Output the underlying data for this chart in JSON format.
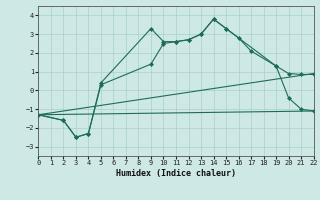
{
  "xlabel": "Humidex (Indice chaleur)",
  "xlim": [
    0,
    22
  ],
  "ylim": [
    -3.5,
    4.5
  ],
  "xticks": [
    0,
    1,
    2,
    3,
    4,
    5,
    6,
    7,
    8,
    9,
    10,
    11,
    12,
    13,
    14,
    15,
    16,
    17,
    18,
    19,
    20,
    21,
    22
  ],
  "yticks": [
    -3,
    -2,
    -1,
    0,
    1,
    2,
    3,
    4
  ],
  "bg_color": "#cde8e5",
  "line_color": "#1e6b5e",
  "line1_x": [
    0,
    2,
    3,
    4,
    5,
    9,
    10,
    11,
    12,
    13,
    14,
    15,
    16,
    17,
    19,
    20,
    21,
    22
  ],
  "line1_y": [
    -1.3,
    -1.6,
    -2.5,
    -2.3,
    0.4,
    3.3,
    2.6,
    2.6,
    2.7,
    3.0,
    3.8,
    3.3,
    2.8,
    2.1,
    1.3,
    0.9,
    0.85,
    0.85
  ],
  "line2_x": [
    0,
    2,
    3,
    4,
    5,
    9,
    10,
    11,
    12,
    13,
    14,
    15,
    19,
    20,
    21,
    22
  ],
  "line2_y": [
    -1.3,
    -1.6,
    -2.5,
    -2.3,
    0.3,
    1.4,
    2.5,
    2.6,
    2.7,
    3.0,
    3.8,
    3.3,
    1.3,
    -0.4,
    -1.0,
    -1.1
  ],
  "line3_x": [
    0,
    22
  ],
  "line3_y": [
    -1.3,
    0.9
  ],
  "line4_x": [
    0,
    22
  ],
  "line4_y": [
    -1.3,
    -1.1
  ],
  "title_fontsize": 7,
  "xlabel_fontsize": 6,
  "tick_labelsize": 5
}
